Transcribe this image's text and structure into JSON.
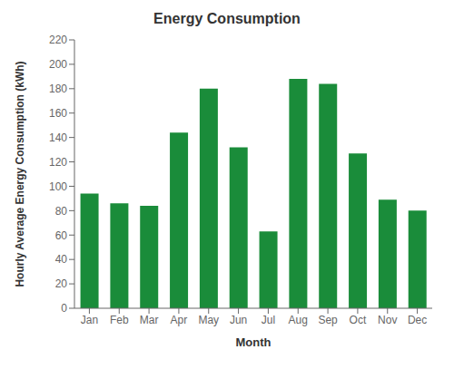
{
  "chart_data": {
    "type": "bar",
    "title": "Energy Consumption",
    "xlabel": "Month",
    "ylabel": "Hourly Average Energy Consumption (kWh)",
    "categories": [
      "Jan",
      "Feb",
      "Mar",
      "Apr",
      "May",
      "Jun",
      "Jul",
      "Aug",
      "Sep",
      "Oct",
      "Nov",
      "Dec"
    ],
    "values": [
      94,
      86,
      84,
      144,
      180,
      132,
      63,
      188,
      184,
      127,
      89,
      80
    ],
    "color": "#1a8c3a",
    "ylim": [
      0,
      220
    ],
    "yticks": [
      0,
      20,
      40,
      60,
      80,
      100,
      120,
      140,
      160,
      180,
      200,
      220
    ],
    "grid": false
  }
}
